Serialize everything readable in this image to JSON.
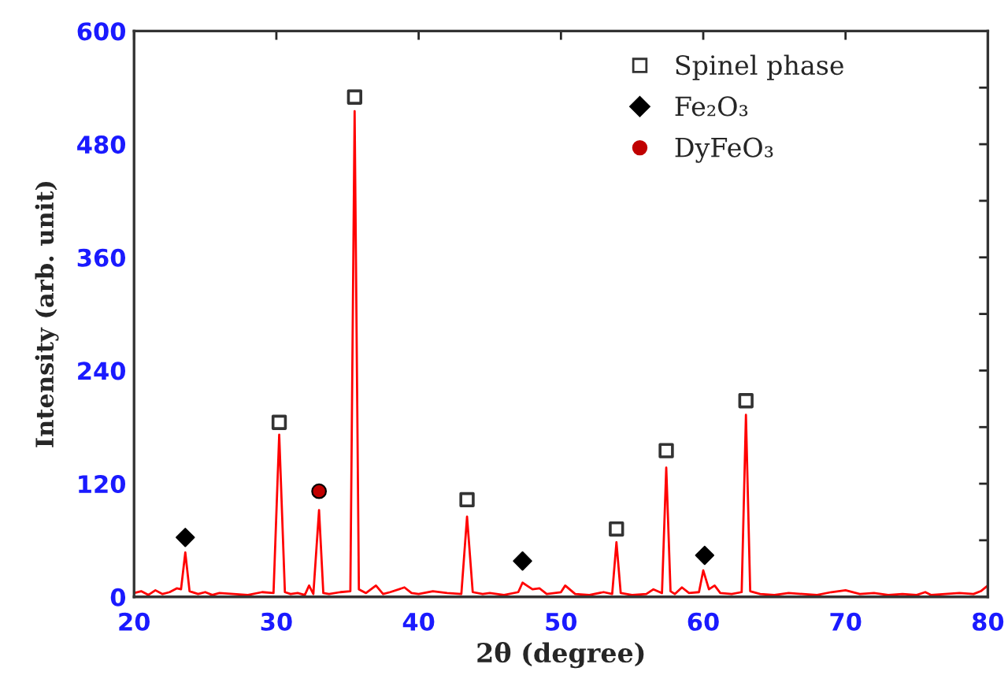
{
  "chart_data": {
    "type": "line",
    "xlabel": "2θ (degree)",
    "ylabel": "Intensity (arb. unit)",
    "xlim": [
      20,
      80
    ],
    "xticks": [
      20,
      30,
      40,
      50,
      60,
      70,
      80
    ],
    "ylim": [
      0,
      600
    ],
    "yticks": [
      0,
      {
        "value": 60,
        "label": null
      },
      120,
      {
        "value": 180,
        "label": null
      },
      240,
      {
        "value": 300,
        "label": null
      },
      360,
      {
        "value": 420,
        "label": null
      },
      480,
      {
        "value": 540,
        "label": null
      },
      600
    ],
    "grid": false,
    "legend": "top right",
    "series": [
      {
        "color": "#ff0000",
        "marker": "none",
        "x": [
          20,
          20.5,
          21,
          21.5,
          22,
          22.5,
          23,
          23.3,
          23.6,
          23.9,
          24.5,
          25,
          25.5,
          26,
          27,
          28,
          29,
          29.8,
          30.2,
          30.6,
          31,
          31.5,
          32,
          32.3,
          32.6,
          33.0,
          33.3,
          33.7,
          34.5,
          35.2,
          35.5,
          35.8,
          36.3,
          37,
          37.5,
          38,
          39,
          39.5,
          40,
          41,
          42,
          43,
          43.4,
          43.8,
          44.5,
          45,
          46,
          47,
          47.3,
          47.6,
          48,
          48.5,
          49,
          50,
          50.3,
          51,
          52,
          53,
          53.6,
          53.9,
          54.2,
          55,
          56,
          56.5,
          57.1,
          57.4,
          57.7,
          58,
          58.5,
          59,
          59.7,
          60.0,
          60.4,
          60.8,
          61.2,
          62,
          62.7,
          63.0,
          63.3,
          64,
          65,
          66,
          67,
          68,
          69,
          70,
          71,
          72,
          73,
          74,
          75,
          75.6,
          76,
          77,
          78,
          79,
          79.5,
          80
        ],
        "values": [
          4,
          6,
          2,
          7,
          3,
          5,
          9,
          8,
          47,
          6,
          3,
          5,
          2,
          4,
          3,
          2,
          5,
          4,
          172,
          5,
          3,
          4,
          2,
          12,
          3,
          92,
          4,
          3,
          5,
          6,
          515,
          8,
          4,
          12,
          3,
          5,
          10,
          4,
          3,
          6,
          4,
          3,
          85,
          5,
          3,
          4,
          2,
          5,
          15,
          12,
          8,
          9,
          3,
          5,
          12,
          3,
          2,
          5,
          3,
          58,
          4,
          2,
          3,
          8,
          4,
          137,
          6,
          3,
          10,
          4,
          5,
          28,
          8,
          12,
          4,
          3,
          5,
          193,
          6,
          3,
          2,
          4,
          3,
          2,
          5,
          7,
          3,
          4,
          2,
          3,
          2,
          5,
          2,
          3,
          4,
          3,
          6,
          12
        ]
      },
      {
        "type": "scatter",
        "name": "Spinel phase",
        "color": "#333333",
        "marker": "square",
        "x": [
          30.2,
          35.5,
          43.4,
          53.9,
          57.4,
          63.0
        ],
        "values": [
          185,
          530,
          103,
          72,
          155,
          208
        ]
      },
      {
        "type": "scatter",
        "name": "Fe₂O₃",
        "color": "#000000",
        "marker": "diamond",
        "x": [
          23.6,
          47.3,
          60.1
        ],
        "values": [
          63,
          38,
          44
        ]
      },
      {
        "type": "scatter",
        "name": "DyFeO₃",
        "color": "#c00000",
        "marker": "circle",
        "x": [
          33.0
        ],
        "values": [
          112
        ]
      }
    ]
  }
}
